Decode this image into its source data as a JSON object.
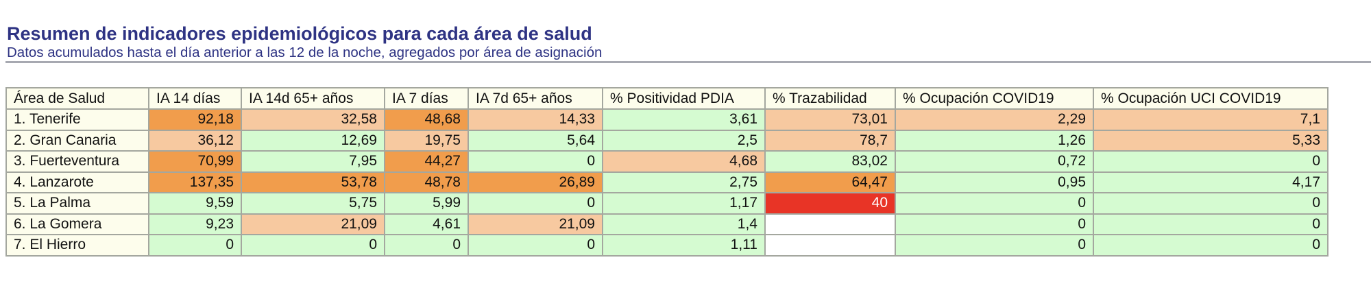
{
  "header": {
    "title": "Resumen de indicadores epidemiológicos para cada área de salud",
    "subtitle": "Datos acumulados hasta el día anterior a las 12 de la noche, agregados por área de asignación"
  },
  "colors": {
    "title_text": "#2e3383",
    "header_bg": "#fdfdec",
    "green": "#d5fbd1",
    "light_orange": "#f7c9a0",
    "orange": "#f19d4c",
    "red": "#e83426",
    "empty": "#ffffff",
    "border": "#a4a79f"
  },
  "table": {
    "columns": [
      "Área de Salud",
      "IA 14 días",
      "IA 14d 65+ años",
      "IA 7 días",
      "IA 7d 65+ años",
      "% Positividad PDIA",
      "% Trazabilidad",
      "% Ocupación COVID19",
      "% Ocupación UCI COVID19"
    ],
    "rows": [
      {
        "area": "1. Tenerife",
        "values": [
          "92,18",
          "32,58",
          "48,68",
          "14,33",
          "3,61",
          "73,01",
          "2,29",
          "7,1"
        ],
        "levels": [
          "orange",
          "light",
          "orange",
          "light",
          "green",
          "light",
          "light",
          "light"
        ]
      },
      {
        "area": "2. Gran Canaria",
        "values": [
          "36,12",
          "12,69",
          "19,75",
          "5,64",
          "2,5",
          "78,7",
          "1,26",
          "5,33"
        ],
        "levels": [
          "light",
          "green",
          "light",
          "green",
          "green",
          "light",
          "green",
          "light"
        ]
      },
      {
        "area": "3. Fuerteventura",
        "values": [
          "70,99",
          "7,95",
          "44,27",
          "0",
          "4,68",
          "83,02",
          "0,72",
          "0"
        ],
        "levels": [
          "orange",
          "green",
          "orange",
          "green",
          "light",
          "green",
          "green",
          "green"
        ]
      },
      {
        "area": "4. Lanzarote",
        "values": [
          "137,35",
          "53,78",
          "48,78",
          "26,89",
          "2,75",
          "64,47",
          "0,95",
          "4,17"
        ],
        "levels": [
          "orange",
          "orange",
          "orange",
          "orange",
          "green",
          "orange",
          "green",
          "green"
        ]
      },
      {
        "area": "5. La Palma",
        "values": [
          "9,59",
          "5,75",
          "5,99",
          "0",
          "1,17",
          "40",
          "0",
          "0"
        ],
        "levels": [
          "green",
          "green",
          "green",
          "green",
          "green",
          "red",
          "green",
          "green"
        ]
      },
      {
        "area": "6. La Gomera",
        "values": [
          "9,23",
          "21,09",
          "4,61",
          "21,09",
          "1,4",
          "",
          "0",
          "0"
        ],
        "levels": [
          "green",
          "light",
          "green",
          "light",
          "green",
          "white",
          "green",
          "green"
        ]
      },
      {
        "area": "7. El Hierro",
        "values": [
          "0",
          "0",
          "0",
          "0",
          "1,11",
          "",
          "0",
          "0"
        ],
        "levels": [
          "green",
          "green",
          "green",
          "green",
          "green",
          "white",
          "green",
          "green"
        ]
      }
    ]
  }
}
